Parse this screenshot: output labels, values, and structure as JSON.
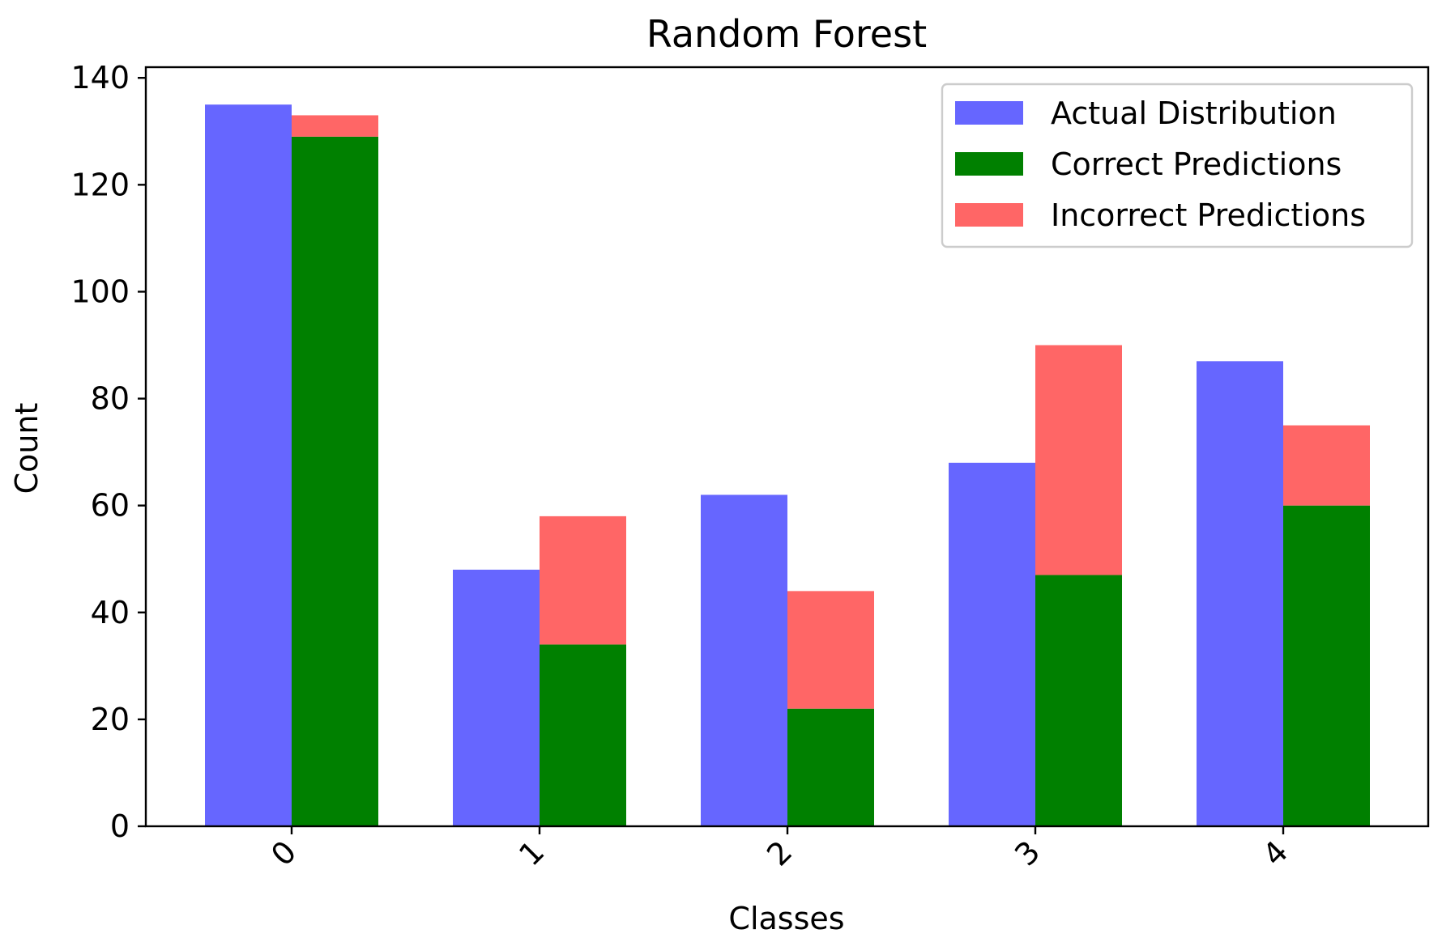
{
  "chart_data": {
    "type": "bar",
    "title": "Random Forest",
    "xlabel": "Classes",
    "ylabel": "Count",
    "categories": [
      "0",
      "1",
      "2",
      "3",
      "4"
    ],
    "ylim": [
      0,
      142
    ],
    "yticks": [
      0,
      20,
      40,
      60,
      80,
      100,
      120,
      140
    ],
    "grid": false,
    "legend_position": "top-right",
    "series": [
      {
        "name": "Actual Distribution",
        "color": "#6666ff",
        "values": [
          135,
          48,
          62,
          68,
          87
        ]
      },
      {
        "name": "Correct Predictions",
        "color": "#008000",
        "values": [
          129,
          34,
          22,
          47,
          60
        ]
      },
      {
        "name": "Incorrect Predictions",
        "color": "#ff6666",
        "values": [
          4,
          24,
          22,
          43,
          15
        ]
      }
    ]
  }
}
